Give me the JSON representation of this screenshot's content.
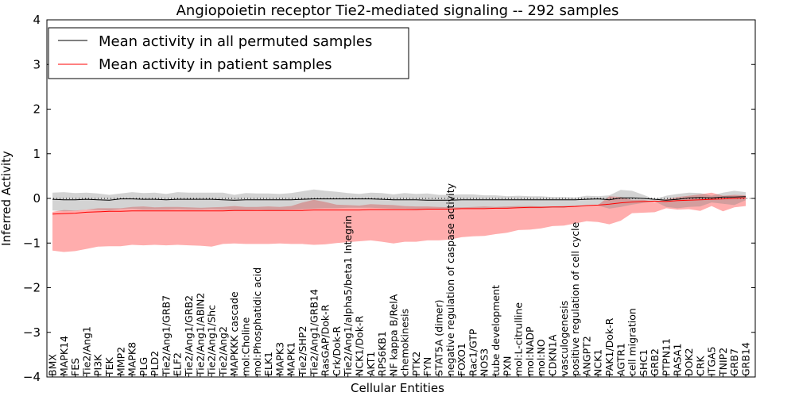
{
  "chart_data": {
    "type": "line",
    "title": "Angiopoietin receptor Tie2-mediated signaling -- 292 samples",
    "xlabel": "Cellular Entities",
    "ylabel": "Inferred Activity",
    "ylim": [
      -4,
      4
    ],
    "yticks": [
      -4,
      -3,
      -2,
      -1,
      0,
      1,
      2,
      3,
      4
    ],
    "ytick_labels": [
      "−4",
      "−3",
      "−2",
      "−1",
      "0",
      "1",
      "2",
      "3",
      "4"
    ],
    "legend_position": "top-left",
    "categories": [
      "BMX",
      "MAPK14",
      "FES",
      "Tie2/Ang1",
      "PI3K",
      "TEK",
      "MMP2",
      "MAPK8",
      "PLG",
      "PLD2",
      "Tie2/Ang1/GRB7",
      "ELF2",
      "Tie2/Ang1/GRB2",
      "Tie2/Ang1/ABIN2",
      "Tie2/Ang1/Shc",
      "Tie2/Ang2",
      "MAPKKK cascade",
      "mol:Choline",
      "mol:Phosphatidic acid",
      "ELK1",
      "MAPK3",
      "MAPK1",
      "Tie2/SHP2",
      "Tie2/Ang1/GRB14",
      "RasGAP/Dok-R",
      "Crk/Dok-R",
      "Tie2/Ang1/alpha5/beta1 Integrin",
      "NCK1/Dok-R",
      "AKT1",
      "RPS6KB1",
      "NF kappa B/RelA",
      "chemokinesis",
      "PTK2",
      "FYN",
      "STAT5A (dimer)",
      "negative regulation of caspase activity",
      "FOXO1",
      "Rac1/GTP",
      "NOS3",
      "tube development",
      "PXN",
      "mol:L-citrulline",
      "mol:NADP",
      "mol:NO",
      "CDKN1A",
      "vasculogenesis",
      "positive regulation of cell cycle",
      "ANGPT2",
      "NCK1",
      "PAK1/Dok-R",
      "AGTR1",
      "cell migration",
      "SHC1",
      "GRB2",
      "PTPN11",
      "RASA1",
      "DOK2",
      "CRK",
      "ITGA5",
      "TNIP2",
      "GRB7",
      "GRB14"
    ],
    "series": [
      {
        "name": "Mean activity in all permuted samples",
        "color": "#000000",
        "values": [
          -0.02,
          -0.03,
          -0.03,
          -0.02,
          -0.03,
          -0.04,
          -0.01,
          -0.01,
          -0.02,
          -0.02,
          -0.03,
          -0.02,
          -0.02,
          -0.02,
          -0.02,
          -0.03,
          -0.04,
          -0.03,
          -0.03,
          -0.03,
          -0.03,
          -0.03,
          -0.02,
          -0.01,
          -0.01,
          -0.01,
          -0.01,
          -0.01,
          -0.01,
          -0.02,
          -0.03,
          -0.03,
          -0.03,
          -0.04,
          -0.04,
          -0.04,
          -0.03,
          -0.03,
          -0.03,
          -0.03,
          -0.03,
          -0.03,
          -0.03,
          -0.03,
          -0.03,
          -0.03,
          -0.03,
          -0.02,
          -0.01,
          -0.03,
          0.01,
          0.01,
          0.0,
          -0.02,
          -0.04,
          -0.02,
          0.01,
          0.02,
          0.01,
          0.03,
          0.03,
          0.04
        ],
        "band_upper": [
          0.15,
          0.17,
          0.15,
          0.15,
          0.14,
          0.12,
          0.12,
          0.15,
          0.14,
          0.15,
          0.13,
          0.16,
          0.15,
          0.15,
          0.15,
          0.16,
          0.12,
          0.15,
          0.14,
          0.14,
          0.13,
          0.15,
          0.18,
          0.21,
          0.18,
          0.16,
          0.13,
          0.11,
          0.14,
          0.14,
          0.12,
          0.15,
          0.13,
          0.15,
          0.12,
          0.12,
          0.12,
          0.12,
          0.1,
          0.1,
          0.08,
          0.09,
          0.08,
          0.08,
          0.06,
          0.06,
          0.05,
          0.08,
          0.06,
          0.1,
          0.18,
          0.16,
          0.08,
          0.0,
          0.1,
          0.12,
          0.12,
          0.1,
          0.05,
          0.1,
          0.14,
          0.1
        ],
        "band_lower": [
          -0.25,
          -0.26,
          -0.25,
          -0.23,
          -0.23,
          -0.23,
          -0.23,
          -0.22,
          -0.23,
          -0.23,
          -0.22,
          -0.22,
          -0.23,
          -0.23,
          -0.22,
          -0.22,
          -0.22,
          -0.23,
          -0.22,
          -0.23,
          -0.23,
          -0.22,
          -0.22,
          -0.22,
          -0.21,
          -0.21,
          -0.2,
          -0.2,
          -0.2,
          -0.2,
          -0.2,
          -0.2,
          -0.21,
          -0.2,
          -0.2,
          -0.2,
          -0.19,
          -0.19,
          -0.19,
          -0.2,
          -0.19,
          -0.19,
          -0.19,
          -0.19,
          -0.18,
          -0.18,
          -0.14,
          -0.14,
          -0.15,
          -0.2,
          -0.2,
          -0.15,
          -0.1,
          -0.05,
          -0.15,
          -0.2,
          -0.2,
          -0.2,
          -0.1,
          -0.15,
          -0.18,
          -0.08
        ]
      },
      {
        "name": "Mean activity in patient samples",
        "color": "#ff0000",
        "values": [
          -0.35,
          -0.34,
          -0.33,
          -0.31,
          -0.3,
          -0.29,
          -0.29,
          -0.28,
          -0.28,
          -0.28,
          -0.28,
          -0.28,
          -0.28,
          -0.28,
          -0.28,
          -0.28,
          -0.27,
          -0.27,
          -0.27,
          -0.27,
          -0.27,
          -0.27,
          -0.27,
          -0.26,
          -0.26,
          -0.26,
          -0.26,
          -0.26,
          -0.25,
          -0.25,
          -0.25,
          -0.25,
          -0.25,
          -0.24,
          -0.24,
          -0.24,
          -0.23,
          -0.23,
          -0.23,
          -0.22,
          -0.22,
          -0.21,
          -0.2,
          -0.2,
          -0.19,
          -0.19,
          -0.18,
          -0.16,
          -0.15,
          -0.13,
          -0.1,
          -0.08,
          -0.07,
          -0.06,
          -0.07,
          -0.05,
          -0.04,
          -0.03,
          -0.02,
          -0.01,
          0.0,
          0.01
        ],
        "band_upper": [
          0.05,
          0.08,
          0.06,
          0.06,
          0.08,
          0.07,
          0.07,
          0.09,
          0.1,
          0.08,
          0.09,
          0.09,
          0.08,
          0.07,
          0.08,
          0.09,
          0.1,
          0.08,
          0.08,
          0.09,
          0.08,
          0.1,
          0.18,
          0.23,
          0.18,
          0.12,
          0.11,
          0.1,
          0.12,
          0.11,
          0.1,
          0.08,
          0.07,
          0.06,
          0.05,
          0.04,
          0.03,
          0.04,
          0.05,
          0.03,
          0.04,
          0.04,
          0.03,
          0.02,
          0.01,
          0.02,
          0.02,
          0.0,
          0.0,
          0.18,
          0.13,
          0.05,
          0.04,
          -0.02,
          0.05,
          0.08,
          0.1,
          0.12,
          0.15,
          0.07,
          0.08,
          0.06
        ],
        "band_lower": [
          -0.82,
          -0.86,
          -0.85,
          -0.82,
          -0.78,
          -0.78,
          -0.78,
          -0.76,
          -0.77,
          -0.76,
          -0.77,
          -0.76,
          -0.77,
          -0.78,
          -0.8,
          -0.74,
          -0.74,
          -0.75,
          -0.75,
          -0.75,
          -0.74,
          -0.75,
          -0.75,
          -0.78,
          -0.77,
          -0.74,
          -0.72,
          -0.7,
          -0.69,
          -0.72,
          -0.76,
          -0.72,
          -0.72,
          -0.7,
          -0.7,
          -0.68,
          -0.64,
          -0.62,
          -0.61,
          -0.58,
          -0.55,
          -0.5,
          -0.5,
          -0.47,
          -0.43,
          -0.42,
          -0.38,
          -0.35,
          -0.38,
          -0.45,
          -0.4,
          -0.25,
          -0.25,
          -0.25,
          -0.15,
          -0.2,
          -0.2,
          -0.25,
          -0.15,
          -0.28,
          -0.2,
          -0.18
        ]
      }
    ]
  }
}
